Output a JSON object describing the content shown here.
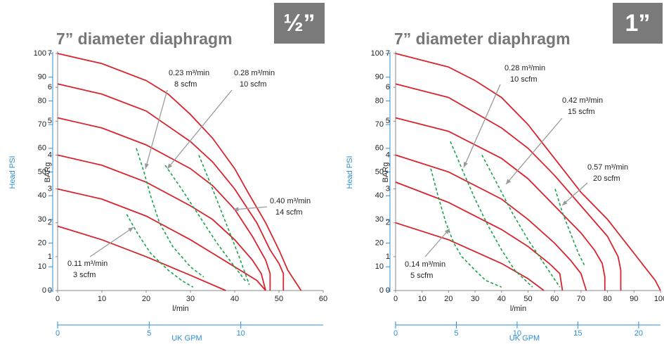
{
  "chart_data": [
    {
      "type": "line",
      "title": "7” diameter diaphragm",
      "badge": "½”",
      "xlabel": "l/min",
      "ylabel": "BARg",
      "xlim": [
        0,
        60
      ],
      "xticks": [
        0,
        10,
        20,
        30,
        40,
        50,
        60
      ],
      "ylim": [
        0,
        7
      ],
      "yticks": [
        0,
        1,
        2,
        3,
        4,
        5,
        6,
        7
      ],
      "psi_axis": {
        "label": "Head PSI",
        "lim": [
          0,
          100
        ],
        "ticks": [
          0,
          10,
          20,
          30,
          40,
          50,
          60,
          70,
          80,
          90,
          100
        ]
      },
      "gpm_axis": {
        "label": "UK GPM",
        "lim": [
          0,
          14.5
        ],
        "ticks": [
          0,
          5,
          10
        ]
      },
      "series": [
        {
          "color": "#d9232d",
          "dashed": false,
          "x": [
            0,
            10,
            20,
            25,
            30,
            35,
            40,
            43,
            47,
            50,
            52,
            53.5,
            55
          ],
          "values": [
            7,
            6.7,
            6.2,
            5.8,
            5.2,
            4.5,
            3.6,
            2.9,
            2,
            1.2,
            0.6,
            0.3,
            0
          ]
        },
        {
          "color": "#d9232d",
          "dashed": false,
          "x": [
            0,
            10,
            20,
            30,
            35,
            40,
            45,
            48,
            50,
            51,
            51
          ],
          "values": [
            6.1,
            5.8,
            5.3,
            4.4,
            3.8,
            3,
            2,
            1.2,
            0.8,
            0.5,
            0
          ]
        },
        {
          "color": "#d9232d",
          "dashed": false,
          "x": [
            0,
            10,
            20,
            30,
            35,
            40,
            44,
            47,
            48,
            48
          ],
          "values": [
            5.1,
            4.8,
            4.3,
            3.6,
            3.1,
            2.4,
            1.6,
            0.9,
            0.5,
            0
          ]
        },
        {
          "color": "#d9232d",
          "dashed": false,
          "x": [
            0,
            10,
            20,
            30,
            35,
            40,
            44,
            46,
            47
          ],
          "values": [
            4,
            3.7,
            3.2,
            2.5,
            2.1,
            1.5,
            0.9,
            0.5,
            0
          ]
        },
        {
          "color": "#d9232d",
          "dashed": false,
          "x": [
            0,
            10,
            20,
            30,
            35,
            40,
            45,
            47
          ],
          "values": [
            3,
            2.7,
            2.2,
            1.5,
            1.1,
            0.7,
            0.3,
            0
          ]
        },
        {
          "color": "#d9232d",
          "dashed": false,
          "x": [
            0,
            10,
            20,
            30,
            38
          ],
          "values": [
            1.9,
            1.5,
            1,
            0.45,
            0
          ]
        },
        {
          "color": "#1aa34a",
          "dashed": true,
          "x": [
            15.6,
            18,
            21,
            25,
            28,
            30.6
          ],
          "values": [
            2.25,
            1.7,
            1.1,
            0.6,
            0.3,
            0.1
          ]
        },
        {
          "color": "#1aa34a",
          "dashed": true,
          "x": [
            17.8,
            19.5,
            21,
            23,
            26,
            30,
            33
          ],
          "values": [
            4.2,
            3.5,
            2.8,
            2,
            1.3,
            0.7,
            0.4
          ]
        },
        {
          "color": "#1aa34a",
          "dashed": true,
          "x": [
            24.3,
            28,
            32,
            36,
            40,
            42.5
          ],
          "values": [
            3.7,
            3,
            2.2,
            1.4,
            0.7,
            0.27
          ]
        },
        {
          "color": "#1aa34a",
          "dashed": true,
          "x": [
            31.9,
            35,
            38,
            41,
            43.3
          ],
          "values": [
            4,
            3,
            2,
            1,
            0.17
          ]
        }
      ],
      "annotations": [
        {
          "lines": [
            "0.23 m³/min",
            "8 scfm"
          ]
        },
        {
          "lines": [
            "0.28 m³/min",
            "10 scfm"
          ]
        },
        {
          "lines": [
            "0.40 m³/min",
            "14  scfm"
          ]
        },
        {
          "lines": [
            "0.11 m³/min",
            "3 scfm"
          ]
        }
      ]
    },
    {
      "type": "line",
      "title": "7” diameter diaphragm",
      "badge": "1”",
      "xlabel": "l/min",
      "ylabel": "BARg",
      "xlim": [
        0,
        100
      ],
      "xticks": [
        0,
        10,
        20,
        30,
        40,
        50,
        60,
        70,
        80,
        90,
        100
      ],
      "ylim": [
        0,
        7
      ],
      "yticks": [
        0,
        1,
        2,
        3,
        4,
        5,
        6,
        7
      ],
      "psi_axis": {
        "label": "Head PSI",
        "lim": [
          0,
          100
        ],
        "ticks": [
          0,
          10,
          20,
          30,
          40,
          50,
          60,
          70,
          80,
          90,
          100
        ]
      },
      "gpm_axis": {
        "label": "UK GPM",
        "lim": [
          0,
          21.8
        ],
        "ticks": [
          0,
          5,
          10,
          15,
          20
        ]
      },
      "series": [
        {
          "color": "#d9232d",
          "dashed": false,
          "x": [
            0,
            20,
            30,
            40,
            50,
            60,
            70,
            80,
            85,
            90,
            95,
            98,
            100
          ],
          "values": [
            7,
            6.6,
            6.2,
            5.7,
            4.9,
            3.9,
            2.9,
            2.1,
            1.6,
            1.1,
            0.6,
            0.3,
            0
          ]
        },
        {
          "color": "#d9232d",
          "dashed": false,
          "x": [
            0,
            20,
            40,
            50,
            60,
            70,
            80,
            84,
            85,
            85
          ],
          "values": [
            6.1,
            5.7,
            4.8,
            4.2,
            3.4,
            2.5,
            1.6,
            1,
            0.6,
            0
          ]
        },
        {
          "color": "#d9232d",
          "dashed": false,
          "x": [
            0,
            20,
            40,
            50,
            60,
            70,
            75,
            78,
            79,
            79
          ],
          "values": [
            5.1,
            4.7,
            3.9,
            3.3,
            2.5,
            1.7,
            1.2,
            0.8,
            0.4,
            0
          ]
        },
        {
          "color": "#d9232d",
          "dashed": false,
          "x": [
            0,
            20,
            40,
            50,
            60,
            66,
            70,
            72
          ],
          "values": [
            4,
            3.5,
            2.7,
            2.1,
            1.4,
            0.9,
            0.5,
            0
          ]
        },
        {
          "color": "#d9232d",
          "dashed": false,
          "x": [
            0,
            20,
            40,
            50,
            58,
            62,
            63
          ],
          "values": [
            3.2,
            2.6,
            1.8,
            1.3,
            0.8,
            0.5,
            0
          ]
        },
        {
          "color": "#d9232d",
          "dashed": false,
          "x": [
            0,
            20,
            40,
            50,
            56
          ],
          "values": [
            2,
            1.5,
            0.8,
            0.35,
            0
          ]
        },
        {
          "color": "#1aa34a",
          "dashed": true,
          "x": [
            13.3,
            16,
            19,
            22,
            25,
            30,
            34,
            40
          ],
          "values": [
            3.6,
            2.8,
            2,
            1.4,
            1,
            0.6,
            0.3,
            0.1
          ]
        },
        {
          "color": "#1aa34a",
          "dashed": true,
          "x": [
            20.7,
            25,
            30,
            35,
            40,
            45,
            51.7
          ],
          "values": [
            4.4,
            3.6,
            2.7,
            1.9,
            1.2,
            0.6,
            0.1
          ]
        },
        {
          "color": "#1aa34a",
          "dashed": true,
          "x": [
            32.6,
            38,
            44,
            50,
            56,
            62
          ],
          "values": [
            4,
            3.2,
            2.3,
            1.5,
            0.8,
            0.1
          ]
        },
        {
          "color": "#1aa34a",
          "dashed": true,
          "x": [
            60.2,
            63,
            66,
            69,
            71.6
          ],
          "values": [
            3,
            2.3,
            1.7,
            1.1,
            0.7
          ]
        }
      ],
      "annotations": [
        {
          "lines": [
            "0.28 m³/min",
            "10 scfm"
          ]
        },
        {
          "lines": [
            "0.42 m³/min",
            "15 scfm"
          ]
        },
        {
          "lines": [
            "0.57 m³/min",
            "20 scfm"
          ]
        },
        {
          "lines": [
            "0.14 m³/min",
            "5 scfm"
          ]
        }
      ]
    }
  ]
}
